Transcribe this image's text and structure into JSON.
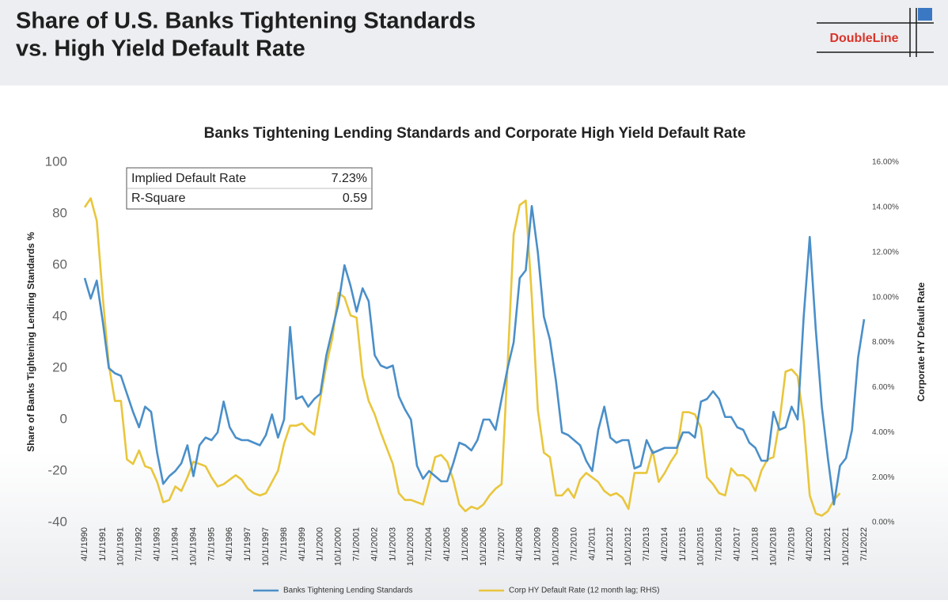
{
  "header": {
    "title_lines": [
      "Share of U.S. Banks Tightening Standards",
      "vs. High Yield Default Rate"
    ],
    "logo": "DoubleLine"
  },
  "chart_data": {
    "type": "line",
    "title": "Banks Tightening Lending Standards and Corporate High Yield Default Rate",
    "y_label": "Share of Banks Tightening Lending Standards %",
    "y2_label": "Corporate HY Default Rate",
    "annotations": [
      {
        "label": "Implied Default Rate",
        "value": "7.23%"
      },
      {
        "label": "R-Square",
        "value": "0.59"
      }
    ],
    "categories": [
      "4/1/1990",
      null,
      null,
      "1/1/1991",
      null,
      null,
      "10/1/1991",
      null,
      null,
      "7/1/1992",
      null,
      null,
      "4/1/1993",
      null,
      null,
      "1/1/1994",
      null,
      null,
      "10/1/1994",
      null,
      null,
      "7/1/1995",
      null,
      null,
      "4/1/1996",
      null,
      null,
      "1/1/1997",
      null,
      null,
      "10/1/1997",
      null,
      null,
      "7/1/1998",
      null,
      null,
      "4/1/1999",
      null,
      null,
      "1/1/2000",
      null,
      null,
      "10/1/2000",
      null,
      null,
      "7/1/2001",
      null,
      null,
      "4/1/2002",
      null,
      null,
      "1/1/2003",
      null,
      null,
      "10/1/2003",
      null,
      null,
      "7/1/2004",
      null,
      null,
      "4/1/2005",
      null,
      null,
      "1/1/2006",
      null,
      null,
      "10/1/2006",
      null,
      null,
      "7/1/2007",
      null,
      null,
      "4/1/2008",
      null,
      null,
      "1/1/2009",
      null,
      null,
      "10/1/2009",
      null,
      null,
      "7/1/2010",
      null,
      null,
      "4/1/2011",
      null,
      null,
      "1/1/2012",
      null,
      null,
      "10/1/2012",
      null,
      null,
      "7/1/2013",
      null,
      null,
      "4/1/2014",
      null,
      null,
      "1/1/2015",
      null,
      null,
      "10/1/2015",
      null,
      null,
      "7/1/2016",
      null,
      null,
      "4/1/2017",
      null,
      null,
      "1/1/2018",
      null,
      null,
      "10/1/2018",
      null,
      null,
      "7/1/2019",
      null,
      null,
      "4/1/2020",
      null,
      null,
      "1/1/2021",
      null,
      null,
      "10/1/2021",
      null,
      null,
      "7/1/2022"
    ],
    "series": [
      {
        "name": "Banks Tightening Lending Standards",
        "color": "#4a8fc9",
        "axis": "y",
        "values": [
          55,
          47,
          54,
          38,
          20,
          18,
          17,
          10,
          3,
          -3,
          5,
          3,
          -13,
          -25,
          -22,
          -20,
          -17,
          -10,
          -22,
          -10,
          -7,
          -8,
          -5,
          7,
          -3,
          -7,
          -8,
          -8,
          -9,
          -10,
          -6,
          2,
          -7,
          0,
          36,
          8,
          9,
          5,
          8,
          10,
          25,
          35,
          45,
          60,
          52,
          42,
          51,
          46,
          25,
          21,
          20,
          21,
          9,
          4,
          0,
          -18,
          -23,
          -20,
          -22,
          -24,
          -24,
          -17,
          -9,
          -10,
          -12,
          -8,
          0,
          0,
          -4,
          8,
          20,
          30,
          55,
          58,
          83,
          65,
          40,
          31,
          15,
          -5,
          -6,
          -8,
          -10,
          -16,
          -20,
          -4,
          5,
          -7,
          -9,
          -8,
          -8,
          -19,
          -18,
          -8,
          -13,
          -12,
          -11,
          -11,
          -11,
          -5,
          -5,
          -7,
          7,
          8,
          11,
          8,
          1,
          1,
          -3,
          -4,
          -9,
          -11,
          -16,
          -16,
          3,
          -4,
          -3,
          5,
          0,
          40,
          71,
          35,
          5,
          -15,
          -33,
          -18,
          -15,
          -4,
          24,
          39
        ]
      },
      {
        "name": "Corp HY Default Rate (12 month lag; RHS)",
        "color": "#e9c63c",
        "axis": "y2",
        "values": [
          14.0,
          14.4,
          13.4,
          10,
          7,
          5.4,
          5.4,
          2.8,
          2.6,
          3.2,
          2.5,
          2.4,
          1.8,
          0.9,
          1.0,
          1.6,
          1.4,
          2.0,
          2.7,
          2.6,
          2.5,
          2.0,
          1.6,
          1.7,
          1.9,
          2.1,
          1.9,
          1.5,
          1.3,
          1.2,
          1.3,
          1.8,
          2.3,
          3.5,
          4.3,
          4.3,
          4.4,
          4.1,
          3.9,
          5.5,
          7.0,
          8.2,
          10.2,
          10.0,
          9.2,
          9.1,
          6.5,
          5.4,
          4.8,
          4.0,
          3.3,
          2.6,
          1.3,
          1.0,
          1.0,
          0.9,
          0.8,
          1.8,
          2.9,
          3.0,
          2.7,
          1.9,
          0.8,
          0.5,
          0.7,
          0.6,
          0.8,
          1.2,
          1.5,
          1.7,
          7.0,
          12.8,
          14.1,
          14.3,
          10.0,
          5.0,
          3.1,
          2.9,
          1.2,
          1.2,
          1.5,
          1.1,
          1.9,
          2.2,
          2.0,
          1.8,
          1.4,
          1.2,
          1.3,
          1.1,
          0.6,
          2.2,
          2.2,
          2.2,
          3.2,
          1.8,
          2.2,
          2.7,
          3.1,
          4.9,
          4.9,
          4.8,
          4.2,
          2.0,
          1.7,
          1.3,
          1.2,
          2.4,
          2.1,
          2.1,
          1.9,
          1.4,
          2.3,
          2.8,
          2.9,
          4.5,
          6.7,
          6.8,
          6.5,
          4.5,
          1.2,
          0.4,
          0.3,
          0.5,
          1.0,
          1.3,
          null,
          null,
          null,
          null
        ]
      }
    ],
    "ylim": [
      -40,
      100
    ],
    "yticks": [
      -40,
      -20,
      0,
      20,
      40,
      60,
      80,
      100
    ],
    "y2lim": [
      0,
      16
    ],
    "y2ticks": [
      {
        "value": 0,
        "label": "0.00%"
      },
      {
        "value": 2,
        "label": "2.00%"
      },
      {
        "value": 4,
        "label": "4.00%"
      },
      {
        "value": 6,
        "label": "6.00%"
      },
      {
        "value": 8,
        "label": "8.00%"
      },
      {
        "value": 10,
        "label": "10.00%"
      },
      {
        "value": 12,
        "label": "12.00%"
      },
      {
        "value": 14,
        "label": "14.00%"
      },
      {
        "value": 16,
        "label": "16.00%"
      }
    ],
    "grid": false,
    "legend": "bottom"
  }
}
